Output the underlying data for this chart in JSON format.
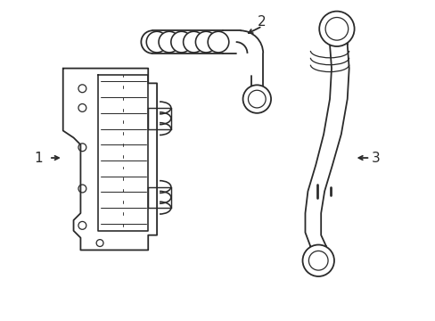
{
  "bg_color": "#ffffff",
  "line_color": "#2a2a2a",
  "lw": 1.3,
  "fig_w": 4.89,
  "fig_h": 3.6,
  "dpi": 100
}
